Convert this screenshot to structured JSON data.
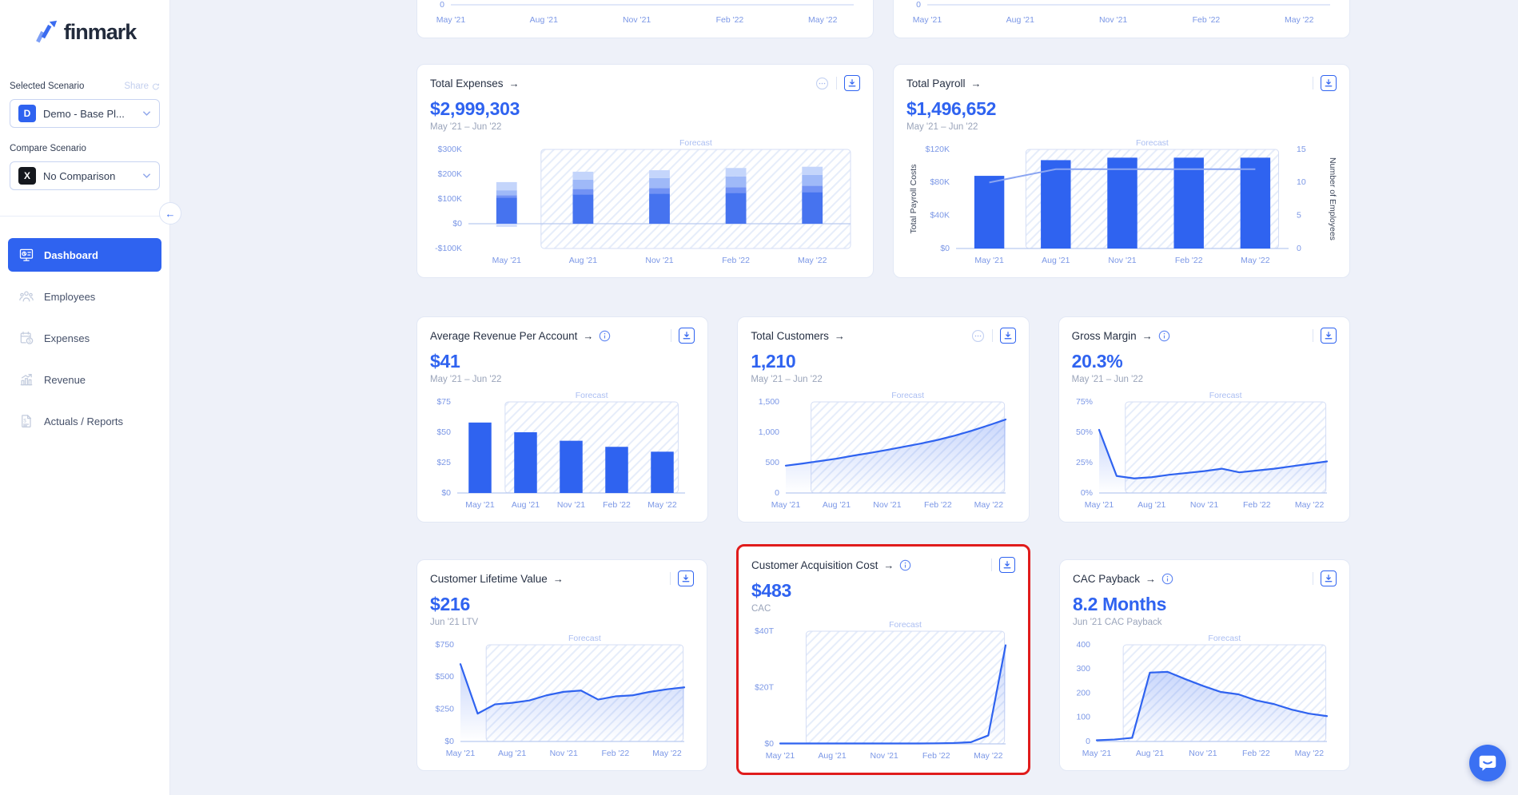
{
  "app": {
    "background": "#eef1f9",
    "accent": "#2f63f0",
    "highlight_red": "#e01c1c"
  },
  "icons": {
    "card_arrow": "→",
    "collapse_arrow": "←"
  },
  "sidebar": {
    "logo_text": "finmark",
    "sections": {
      "selected_scenario_label": "Selected Scenario",
      "share_label": "Share",
      "scenario_select": {
        "badge": "D",
        "value": "Demo - Base Pl..."
      },
      "compare_scenario_label": "Compare Scenario",
      "comparison_select": {
        "badge": "X",
        "value": "No Comparison"
      }
    },
    "nav": [
      {
        "id": "dashboard",
        "label": "Dashboard",
        "icon": "dashboard-icon",
        "active": true
      },
      {
        "id": "employees",
        "label": "Employees",
        "icon": "employees-icon",
        "active": false
      },
      {
        "id": "expenses",
        "label": "Expenses",
        "icon": "expenses-icon",
        "active": false
      },
      {
        "id": "revenue",
        "label": "Revenue",
        "icon": "revenue-icon",
        "active": false
      },
      {
        "id": "reports",
        "label": "Actuals / Reports",
        "icon": "reports-icon",
        "active": false
      }
    ]
  },
  "cards": [
    {
      "id": "partial-left",
      "row": "row-1",
      "partial": true,
      "chart": "partial-left"
    },
    {
      "id": "partial-right",
      "row": "row-1",
      "partial": true,
      "chart": "partial-right"
    },
    {
      "id": "total-expenses",
      "row": "row-2",
      "title": "Total Expenses",
      "value": "$2,999,303",
      "subtitle": "May '21 – Jun '22",
      "info": false,
      "ellipsis": true,
      "download": true,
      "chart": "total-expenses"
    },
    {
      "id": "total-payroll",
      "row": "row-2",
      "title": "Total Payroll",
      "value": "$1,496,652",
      "subtitle": "May '21 – Jun '22",
      "info": false,
      "ellipsis": false,
      "download": true,
      "chart": "total-payroll"
    },
    {
      "id": "arpa",
      "row": "row-3",
      "title": "Average Revenue Per Account",
      "value": "$41",
      "subtitle": "May '21 – Jun '22",
      "info": true,
      "ellipsis": false,
      "download": true,
      "chart": "arpa"
    },
    {
      "id": "total-customers",
      "row": "row-3",
      "title": "Total Customers",
      "value": "1,210",
      "subtitle": "May '21 – Jun '22",
      "info": false,
      "ellipsis": true,
      "download": true,
      "chart": "total-customers"
    },
    {
      "id": "gross-margin",
      "row": "row-3",
      "title": "Gross Margin",
      "value": "20.3%",
      "subtitle": "May '21 – Jun '22",
      "info": true,
      "ellipsis": false,
      "download": true,
      "chart": "gross-margin"
    },
    {
      "id": "clv",
      "row": "row-4",
      "title": "Customer Lifetime Value",
      "value": "$216",
      "subtitle": "Jun '21 LTV",
      "info": false,
      "ellipsis": false,
      "download": true,
      "chart": "clv"
    },
    {
      "id": "cac",
      "row": "row-4",
      "title": "Customer Acquisition Cost",
      "value": "$483",
      "subtitle": "CAC",
      "info": true,
      "ellipsis": false,
      "download": true,
      "chart": "cac",
      "highlighted": true
    },
    {
      "id": "cac-payback",
      "row": "row-4",
      "title": "CAC Payback",
      "value": "8.2 Months",
      "subtitle": "Jun '21 CAC Payback",
      "info": true,
      "ellipsis": false,
      "download": true,
      "chart": "cac-payback"
    }
  ],
  "chart_data": [
    {
      "id": "partial-left",
      "type": "partial",
      "y_tick_label": "0",
      "x_ticks": [
        "May '21",
        "Aug '21",
        "Nov '21",
        "Feb '22",
        "May '22"
      ],
      "tick_indices": [
        0,
        3,
        6,
        9,
        12
      ],
      "n_points": 14,
      "m": [
        26,
        8
      ]
    },
    {
      "id": "partial-right",
      "type": "partial",
      "y_tick_label": "0",
      "x_ticks": [
        "May '21",
        "Aug '21",
        "Nov '21",
        "Feb '22",
        "May '22"
      ],
      "tick_indices": [
        0,
        3,
        6,
        9,
        12
      ],
      "n_points": 14,
      "m": [
        26,
        8
      ]
    },
    {
      "id": "total-expenses",
      "type": "stacked-bar",
      "title": "Total Expenses",
      "categories": [
        "May '21",
        "Aug '21",
        "Nov '21",
        "Feb '22",
        "May '22"
      ],
      "series": [
        {
          "name": "segment-1",
          "color": "#4673ef",
          "values": [
            105,
            118,
            122,
            125,
            128
          ]
        },
        {
          "name": "segment-2",
          "color": "#7292f4",
          "values": [
            10,
            22,
            22,
            22,
            25
          ]
        },
        {
          "name": "segment-3",
          "color": "#9fb9f8",
          "values": [
            20,
            38,
            40,
            44,
            44
          ]
        },
        {
          "name": "segment-4",
          "color": "#c4d5fb",
          "values": [
            33,
            32,
            32,
            34,
            33
          ]
        }
      ],
      "negative_values": [
        -13,
        0,
        0,
        0,
        0
      ],
      "unit": "K USD",
      "y_ticks": [
        [
          300,
          "$300K"
        ],
        [
          200,
          "$200K"
        ],
        [
          100,
          "$100K"
        ],
        [
          0,
          "$0"
        ],
        [
          -100,
          "-$100K"
        ]
      ],
      "y_range": [
        -100,
        300
      ],
      "forecast": {
        "label": "Forecast",
        "from": 0.19,
        "to": 1.0
      },
      "m": [
        48,
        12
      ],
      "bar_frac": 0.27
    },
    {
      "id": "total-payroll",
      "type": "bar-line",
      "title": "Total Payroll",
      "categories": [
        "May '21",
        "Aug '21",
        "Nov '21",
        "Feb '22",
        "May '22"
      ],
      "bar_series": {
        "name": "Total Payroll Costs",
        "color": "#2f63f0",
        "values": [
          88,
          107,
          110,
          110,
          110
        ]
      },
      "line_series": {
        "name": "Number of Employees",
        "color": "#8aa5f2",
        "values": [
          10,
          12,
          12,
          12,
          12
        ]
      },
      "y_ticks": [
        [
          120,
          "$120K"
        ],
        [
          80,
          "$80K"
        ],
        [
          40,
          "$40K"
        ],
        [
          0,
          "$0"
        ]
      ],
      "y_range": [
        0,
        120
      ],
      "y2_ticks": [
        [
          15,
          "15"
        ],
        [
          10,
          "10"
        ],
        [
          5,
          "5"
        ],
        [
          0,
          "0"
        ]
      ],
      "y2_range": [
        0,
        15
      ],
      "y_label": "Total Payroll Costs",
      "y2_label": "Number of Employees",
      "forecast": {
        "label": "Forecast",
        "from": 0.21,
        "to": 0.97
      },
      "m": [
        62,
        60
      ],
      "bar_frac": 0.45
    },
    {
      "id": "arpa",
      "type": "bar",
      "title": "Average Revenue Per Account",
      "categories": [
        "May '21",
        "Aug '21",
        "Nov '21",
        "Feb '22",
        "May '22"
      ],
      "values": [
        58,
        50,
        43,
        38,
        34
      ],
      "color": "#2f63f0",
      "y_ticks": [
        [
          75,
          "$75"
        ],
        [
          50,
          "$50"
        ],
        [
          25,
          "$25"
        ],
        [
          0,
          "$0"
        ]
      ],
      "y_range": [
        0,
        75
      ],
      "forecast": {
        "label": "Forecast",
        "from": 0.21,
        "to": 0.97
      },
      "m": [
        34,
        12
      ],
      "bar_frac": 0.5
    },
    {
      "id": "total-customers",
      "type": "line",
      "title": "Total Customers",
      "x_ticks": [
        "May '21",
        "Aug '21",
        "Nov '21",
        "Feb '22",
        "May '22"
      ],
      "tick_indices": [
        0,
        3,
        6,
        9,
        12
      ],
      "values": [
        450,
        485,
        525,
        565,
        615,
        660,
        710,
        762,
        815,
        875,
        945,
        1025,
        1115,
        1210
      ],
      "y_ticks": [
        [
          1500,
          "1,500"
        ],
        [
          1000,
          "1,000"
        ],
        [
          500,
          "500"
        ],
        [
          0,
          "0"
        ]
      ],
      "y_range": [
        0,
        1500
      ],
      "area": true,
      "forecast": {
        "label": "Forecast",
        "from": 0.115,
        "to": 0.995
      },
      "m": [
        44,
        12
      ]
    },
    {
      "id": "gross-margin",
      "type": "line",
      "title": "Gross Margin",
      "x_ticks": [
        "May '21",
        "Aug '21",
        "Nov '21",
        "Feb '22",
        "May '22"
      ],
      "tick_indices": [
        0,
        3,
        6,
        9,
        12
      ],
      "values": [
        52,
        14,
        12,
        13,
        15,
        16.5,
        18,
        20,
        17,
        18.5,
        20,
        22,
        24,
        26
      ],
      "y_ticks": [
        [
          75,
          "75%"
        ],
        [
          50,
          "50%"
        ],
        [
          25,
          "25%"
        ],
        [
          0,
          "0%"
        ]
      ],
      "y_range": [
        0,
        75
      ],
      "area": true,
      "forecast": {
        "label": "Forecast",
        "from": 0.115,
        "to": 0.995
      },
      "m": [
        34,
        12
      ]
    },
    {
      "id": "clv",
      "type": "line",
      "title": "Customer Lifetime Value",
      "x_ticks": [
        "May '21",
        "Aug '21",
        "Nov '21",
        "Feb '22",
        "May '22"
      ],
      "tick_indices": [
        0,
        3,
        6,
        9,
        12
      ],
      "values": [
        600,
        216,
        288,
        300,
        318,
        358,
        385,
        395,
        325,
        350,
        358,
        385,
        405,
        420
      ],
      "y_ticks": [
        [
          750,
          "$750"
        ],
        [
          500,
          "$500"
        ],
        [
          250,
          "$250"
        ],
        [
          0,
          "$0"
        ]
      ],
      "y_range": [
        0,
        750
      ],
      "area": true,
      "forecast": {
        "label": "Forecast",
        "from": 0.115,
        "to": 0.995
      },
      "m": [
        38,
        12
      ]
    },
    {
      "id": "cac",
      "type": "line",
      "title": "Customer Acquisition Cost",
      "x_ticks": [
        "May '21",
        "Aug '21",
        "Nov '21",
        "Feb '22",
        "May '22"
      ],
      "tick_indices": [
        0,
        3,
        6,
        9,
        12
      ],
      "values": [
        0.15,
        0.15,
        0.15,
        0.15,
        0.15,
        0.15,
        0.15,
        0.15,
        0.15,
        0.2,
        0.3,
        0.6,
        3,
        35
      ],
      "y_ticks": [
        [
          40,
          "$40T"
        ],
        [
          20,
          "$20T"
        ],
        [
          0,
          "$0"
        ]
      ],
      "y_range": [
        0,
        40
      ],
      "area": true,
      "forecast": {
        "label": "Forecast",
        "from": 0.115,
        "to": 0.995
      },
      "m": [
        36,
        12
      ]
    },
    {
      "id": "cac-payback",
      "type": "line",
      "title": "CAC Payback",
      "x_ticks": [
        "May '21",
        "Aug '21",
        "Nov '21",
        "Feb '22",
        "May '22"
      ],
      "tick_indices": [
        0,
        3,
        6,
        9,
        12
      ],
      "values": [
        5,
        8,
        15,
        285,
        288,
        258,
        230,
        205,
        195,
        170,
        155,
        132,
        115,
        105
      ],
      "y_ticks": [
        [
          400,
          "400"
        ],
        [
          300,
          "300"
        ],
        [
          200,
          "200"
        ],
        [
          100,
          "100"
        ],
        [
          0,
          "0"
        ]
      ],
      "y_range": [
        0,
        400
      ],
      "area": true,
      "forecast": {
        "label": "Forecast",
        "from": 0.115,
        "to": 0.995
      },
      "m": [
        30,
        12
      ]
    }
  ],
  "chat": {
    "label": "chat-launcher"
  }
}
